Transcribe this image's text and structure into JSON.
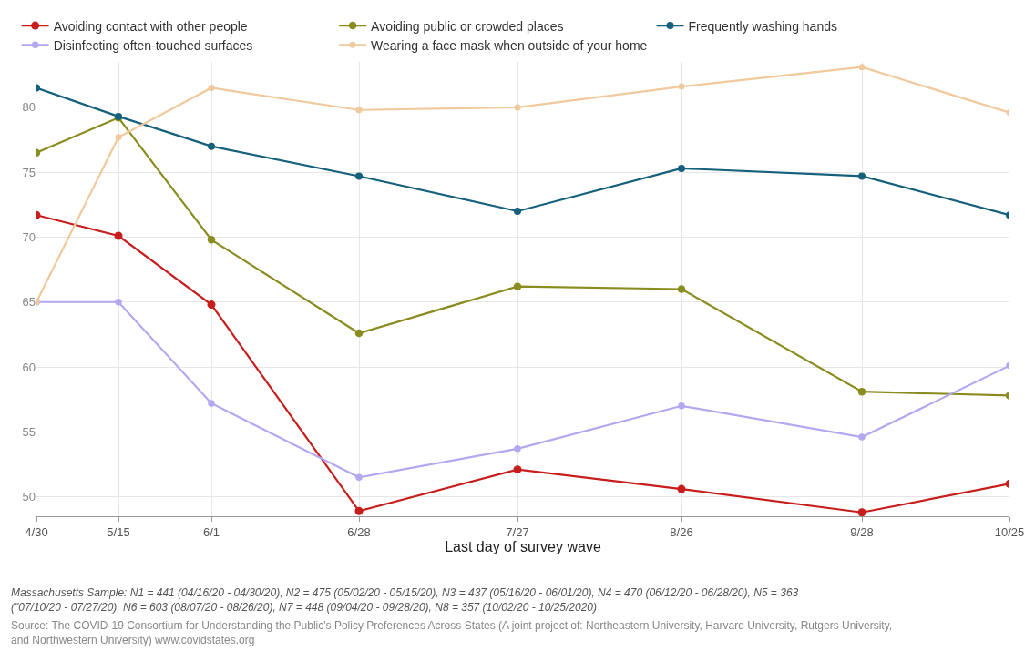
{
  "chart_data": {
    "type": "line",
    "xlabel": "Last day of survey wave",
    "x": [
      "--04-30",
      "--05-15",
      "--06-01",
      "--06-28",
      "--07-27",
      "--08-26",
      "--09-28",
      "--10-25"
    ],
    "xlim": [
      "--04-30",
      "--10-25"
    ],
    "xticks": [
      {
        "value": "--04-30",
        "label": "4/30"
      },
      {
        "value": "--05-15",
        "label": "5/15"
      },
      {
        "value": "--06-01",
        "label": "6/1"
      },
      {
        "value": "--06-28",
        "label": "6/28"
      },
      {
        "value": "--07-27",
        "label": "7/27"
      },
      {
        "value": "--08-26",
        "label": "8/26"
      },
      {
        "value": "--09-28",
        "label": "9/28"
      },
      {
        "value": "--10-25",
        "label": "10/25"
      }
    ],
    "ylim": [
      48.5,
      83.5
    ],
    "yticks": [
      50,
      55,
      60,
      65,
      70,
      75,
      80
    ],
    "grid": true,
    "legend": "top left",
    "marker": "circle",
    "line_style": "solid",
    "series": [
      {
        "name": "Avoiding contact with other people",
        "color": "#c71e1d",
        "values": [
          71.7,
          70.1,
          64.8,
          48.9,
          52.1,
          50.6,
          48.8,
          51.0
        ]
      },
      {
        "name": "Avoiding public or crowded places",
        "color": "#8a8c1f",
        "values": [
          76.5,
          79.2,
          69.8,
          62.6,
          66.2,
          66.0,
          58.1,
          57.8
        ]
      },
      {
        "name": "Frequently washing hands",
        "color": "#15607a",
        "values": [
          81.5,
          79.3,
          77.0,
          74.7,
          72.0,
          75.3,
          74.7,
          71.7
        ]
      },
      {
        "name": "Disinfecting often-touched surfaces",
        "color": "#b3a7f0",
        "values": [
          65.0,
          65.0,
          57.2,
          51.5,
          53.7,
          57.0,
          54.6,
          60.1
        ]
      },
      {
        "name": "Wearing a face mask when outside of your home",
        "color": "#f0c99c",
        "values": [
          65.0,
          77.7,
          81.5,
          79.8,
          80.0,
          81.6,
          83.1,
          79.6
        ]
      }
    ],
    "annotations": [
      "Massachusetts Sample: N1 = 441 (04/16/20 - 04/30/20), N2 = 475 (05/02/20 - 05/15/20), N3 = 437 (05/16/20 - 06/01/20), N4 = 470 (06/12/20 - 06/28/20), N5 = 363\n(\"07/10/20 - 07/27/20), N6 = 603 (08/07/20 - 08/26/20), N7 = 448 (09/04/20 - 09/28/20), N8 = 357 (10/02/20 - 10/25/2020)",
      "Source: The COVID-19 Consortium for Understanding the Public's Policy Preferences Across States (A joint project of: Northeastern University, Harvard University, Rutgers University,\nand Northwestern University) www.covidstates.org"
    ]
  }
}
